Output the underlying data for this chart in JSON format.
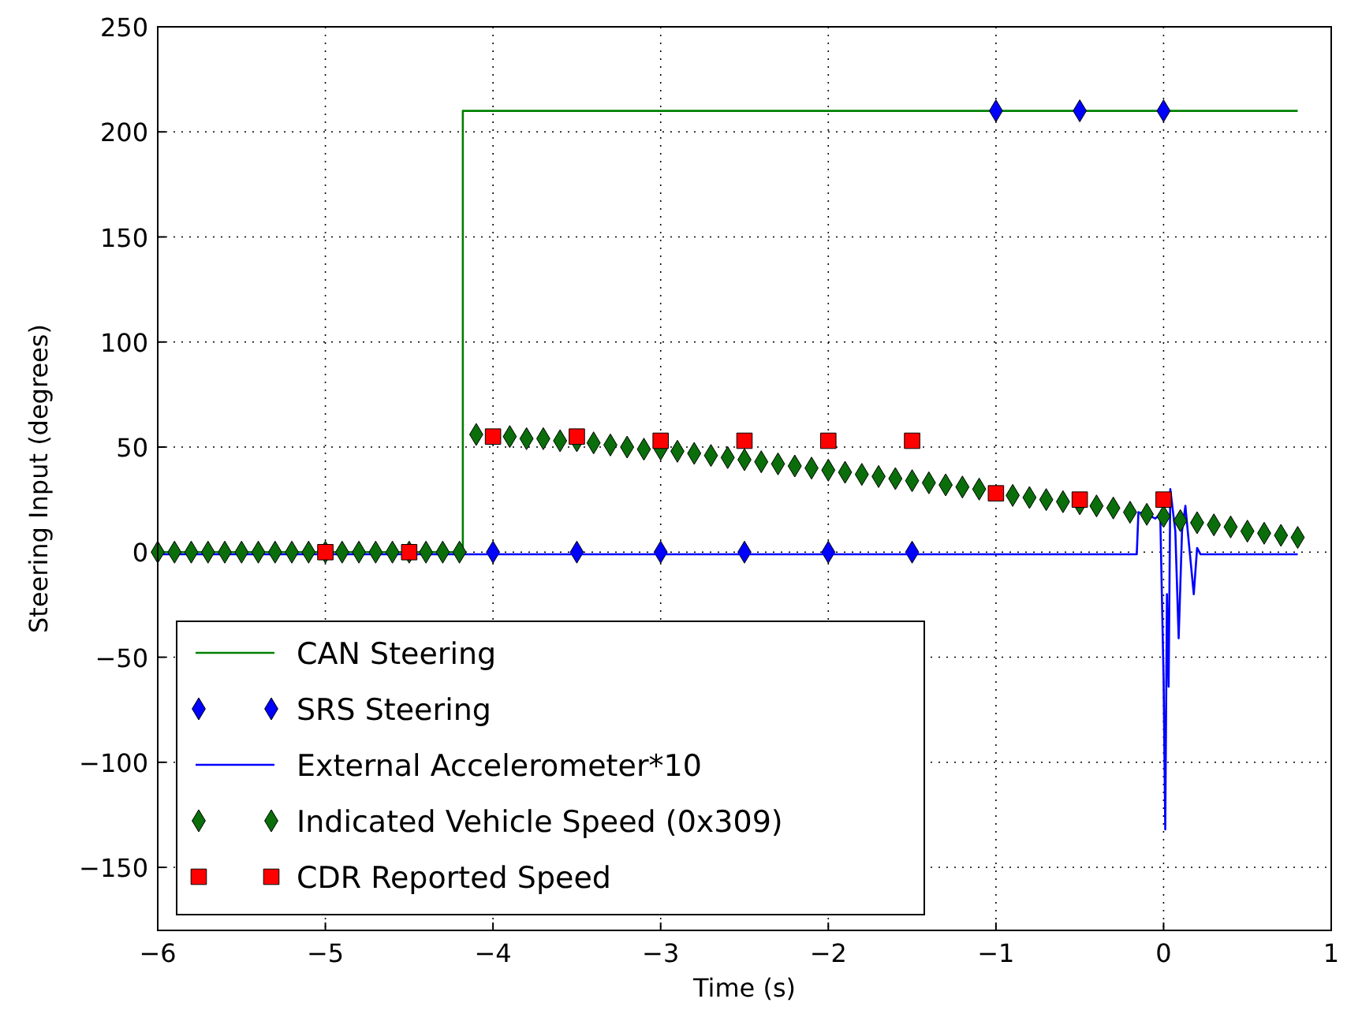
{
  "chart_data": {
    "type": "line",
    "xlabel": "Time (s)",
    "ylabel": "Steering Input (degrees)",
    "xlim": [
      -6,
      1
    ],
    "ylim": [
      -180,
      250
    ],
    "xticks": [
      -6,
      -5,
      -4,
      -3,
      -2,
      -1,
      0,
      1
    ],
    "yticks": [
      -150,
      -100,
      -50,
      0,
      50,
      100,
      150,
      200,
      250
    ],
    "grid": true,
    "legend": "bottom left",
    "series": [
      {
        "name": "CAN Steering",
        "color": "#008000",
        "marker": "none",
        "x": [
          -6,
          -4.18,
          -4.18,
          0.8
        ],
        "values": [
          0,
          0,
          210,
          210
        ]
      },
      {
        "name": "SRS Steering",
        "type": "scatter",
        "color": "#0000ff",
        "marker": "diamond",
        "x": [
          -4,
          -3.5,
          -3,
          -2.5,
          -2,
          -1.5,
          -1,
          -0.5,
          0
        ],
        "values": [
          0,
          0,
          0,
          0,
          0,
          0,
          210,
          210,
          210
        ]
      },
      {
        "name": "External Accelerometer*10",
        "color": "#0000ff",
        "marker": "none",
        "x": [
          -6,
          -0.16,
          -0.15,
          -0.1,
          -0.05,
          -0.02,
          0,
          0.01,
          0.02,
          0.03,
          0.04,
          0.07,
          0.09,
          0.11,
          0.13,
          0.15,
          0.18,
          0.2,
          0.22,
          0.8
        ],
        "values": [
          -1,
          -1,
          19,
          18,
          16,
          18,
          -60,
          -132,
          -20,
          -64,
          30,
          10,
          -41,
          10,
          22,
          5,
          -20,
          2,
          -1,
          -1
        ]
      },
      {
        "name": "Indicated Vehicle Speed (0x309)",
        "type": "scatter",
        "color": "#0a6e0a",
        "marker": "diamond",
        "x": [
          -6,
          -5.9,
          -5.8,
          -5.7,
          -5.6,
          -5.5,
          -5.4,
          -5.3,
          -5.2,
          -5.1,
          -5,
          -4.9,
          -4.8,
          -4.7,
          -4.6,
          -4.5,
          -4.4,
          -4.3,
          -4.2,
          -4.1,
          -4,
          -3.9,
          -3.8,
          -3.7,
          -3.6,
          -3.5,
          -3.4,
          -3.3,
          -3.2,
          -3.1,
          -3,
          -2.9,
          -2.8,
          -2.7,
          -2.6,
          -2.5,
          -2.4,
          -2.3,
          -2.2,
          -2.1,
          -2,
          -1.9,
          -1.8,
          -1.7,
          -1.6,
          -1.5,
          -1.4,
          -1.3,
          -1.2,
          -1.1,
          -1,
          -0.9,
          -0.8,
          -0.7,
          -0.6,
          -0.5,
          -0.4,
          -0.3,
          -0.2,
          -0.1,
          0,
          0.1,
          0.2,
          0.3,
          0.4,
          0.5,
          0.6,
          0.7,
          0.8
        ],
        "values": [
          0,
          0,
          0,
          0,
          0,
          0,
          0,
          0,
          0,
          0,
          0,
          0,
          0,
          0,
          0,
          0,
          0,
          0,
          0,
          56,
          null,
          55,
          54,
          54,
          53,
          53,
          52,
          51,
          50,
          49,
          49,
          48,
          47,
          46,
          45,
          44,
          43,
          42,
          41,
          40,
          39,
          38,
          37,
          36,
          35,
          34,
          33,
          32,
          31,
          30,
          null,
          27,
          26,
          25,
          24,
          23,
          22,
          21,
          19,
          18,
          17,
          15,
          14,
          13,
          12,
          10,
          9,
          8,
          7
        ]
      },
      {
        "name": "CDR Reported Speed",
        "type": "scatter",
        "color": "#ff0000",
        "marker": "square",
        "x": [
          -5,
          -4.5,
          -4,
          -3.5,
          -3,
          -2.5,
          -2,
          -1.5,
          -1,
          -0.5,
          0
        ],
        "values": [
          0,
          0,
          55,
          55,
          53,
          53,
          53,
          53,
          28,
          25,
          25
        ]
      }
    ]
  }
}
